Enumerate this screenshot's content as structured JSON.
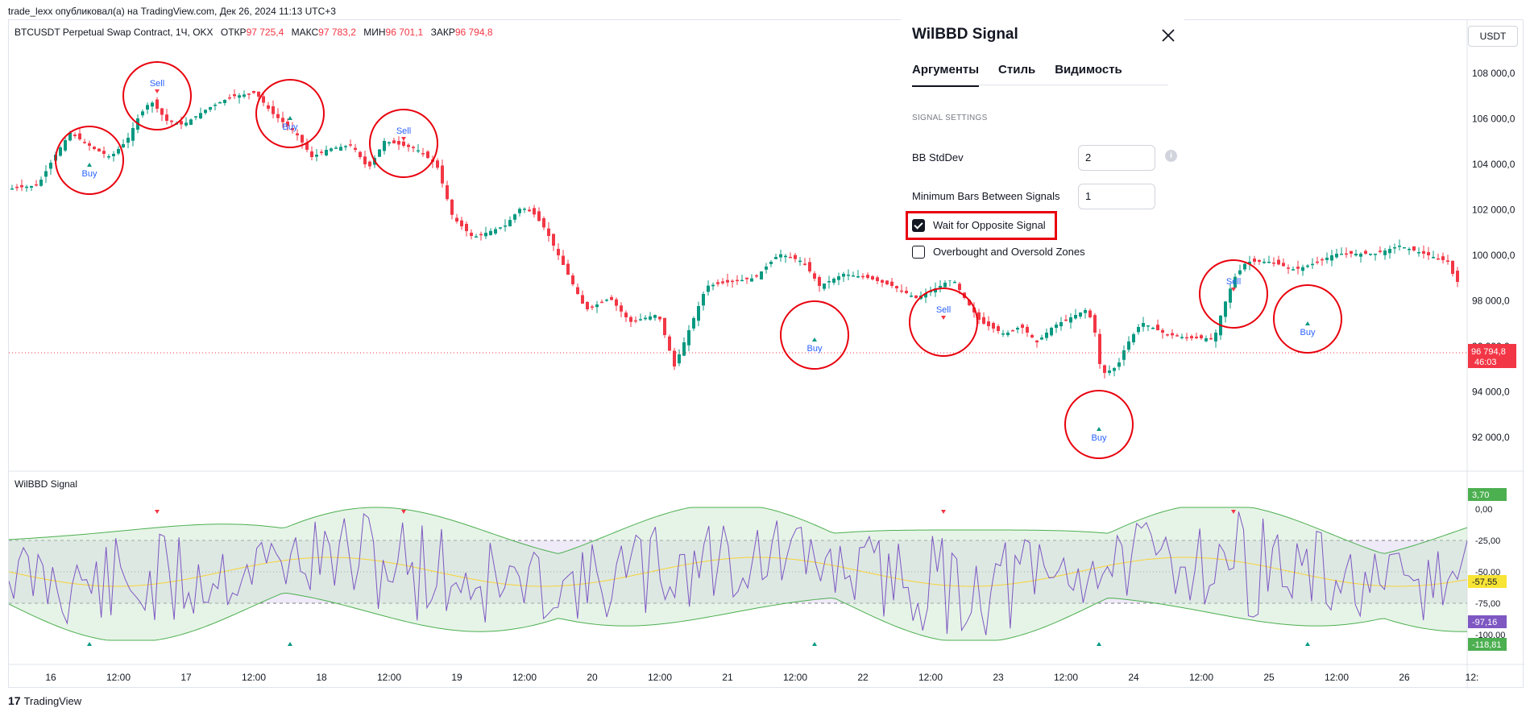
{
  "header": {
    "publisher": "trade_lexx опубликовал(а) на TradingView.com, Дек 26, 2024 11:13 UTC+3"
  },
  "legend": {
    "symbol": "BTCUSDT Perpetual Swap Contract, 1Ч, OKX",
    "open_label": "ОТКР",
    "open": "97 725,4",
    "high_label": "МАКС",
    "high": "97 783,2",
    "low_label": "МИН",
    "low": "96 701,1",
    "close_label": "ЗАКР",
    "close": "96 794,8"
  },
  "currency_button": "USDT",
  "price_axis": [
    "108 000,0",
    "106 000,0",
    "104 000,0",
    "102 000,0",
    "100 000,0",
    "98 000,0",
    "96 000,0",
    "94 000,0",
    "92 000,0"
  ],
  "price_tag": {
    "price": "96 794,8",
    "countdown": "46:03"
  },
  "indicator": {
    "title": "WilBBD Signal",
    "axis": [
      "0,00",
      "-25,00",
      "-50,00",
      "-75,00",
      "-100,00"
    ],
    "tags": [
      {
        "text": "3,70",
        "color": "#4caf50"
      },
      {
        "text": "-57,55",
        "color": "#f7e434"
      },
      {
        "text": "-97,16",
        "color": "#7e57c2"
      },
      {
        "text": "-118,81",
        "color": "#4caf50"
      }
    ]
  },
  "time_axis": [
    "16",
    "12:00",
    "17",
    "12:00",
    "18",
    "12:00",
    "19",
    "12:00",
    "20",
    "12:00",
    "21",
    "12:00",
    "22",
    "12:00",
    "23",
    "12:00",
    "24",
    "12:00",
    "25",
    "12:00",
    "26",
    "12:"
  ],
  "signals": [
    {
      "label": "Buy"
    },
    {
      "label": "Sell"
    },
    {
      "label": "Buy"
    },
    {
      "label": "Sell"
    },
    {
      "label": "Buy"
    },
    {
      "label": "Sell"
    },
    {
      "label": "Buy"
    },
    {
      "label": "Sell"
    },
    {
      "label": "Buy"
    }
  ],
  "panel": {
    "title": "WilBBD Signal",
    "tabs": [
      "Аргументы",
      "Стиль",
      "Видимость"
    ],
    "section": "SIGNAL SETTINGS",
    "bb_stddev_label": "BB StdDev",
    "bb_stddev_value": "2",
    "min_bars_label": "Minimum Bars Between Signals",
    "min_bars_value": "1",
    "wait_label": "Wait for Opposite Signal",
    "wait_checked": true,
    "zones_label": "Overbought and Oversold Zones",
    "zones_checked": false
  },
  "footer": {
    "brand": "TradingView"
  },
  "colors": {
    "up": "#089981",
    "down": "#f23645",
    "signal_blue": "#2962ff",
    "highlight": "#e8000d"
  }
}
